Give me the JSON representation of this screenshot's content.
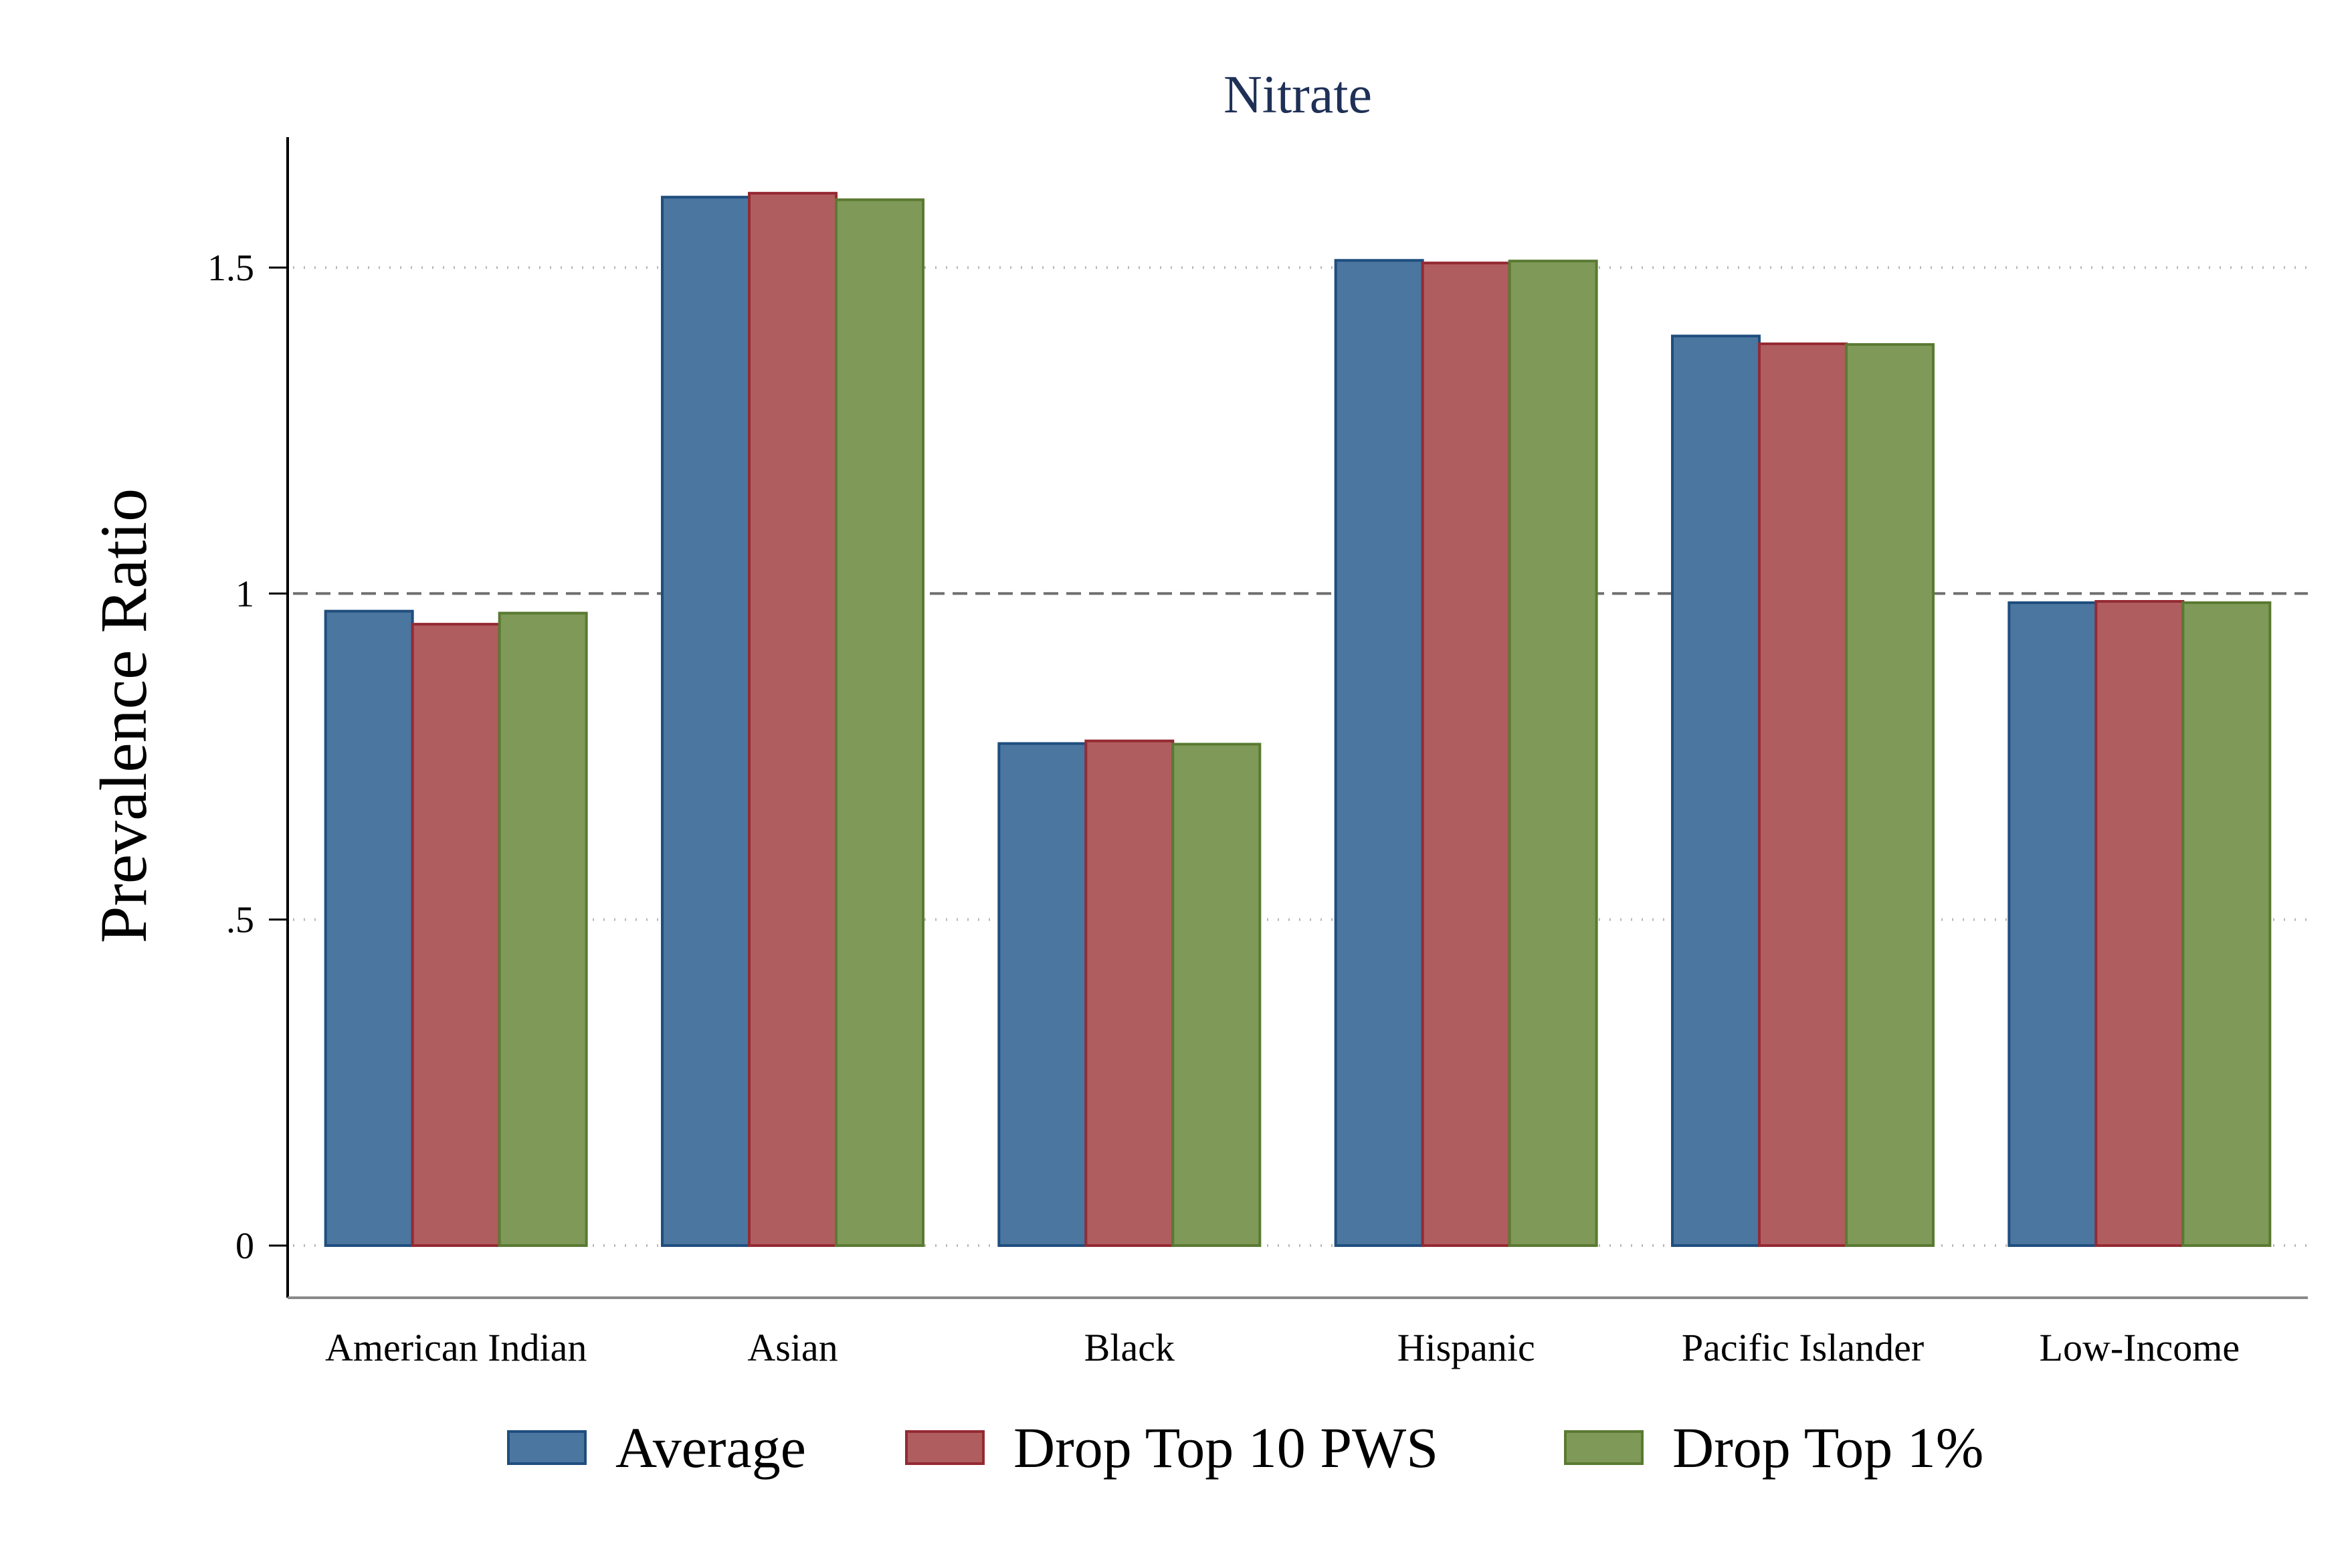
{
  "chart_data": {
    "type": "bar",
    "title": "Nitrate",
    "ylabel": "Prevalence Ratio",
    "xlabel": "",
    "categories": [
      "American Indian",
      "Asian",
      "Black",
      "Hispanic",
      "Pacific Islander",
      "Low-Income"
    ],
    "series": [
      {
        "name": "Average",
        "color": "#4a76a0",
        "stroke": "#1f4e7e",
        "values": [
          0.973,
          1.608,
          0.77,
          1.511,
          1.395,
          0.986
        ]
      },
      {
        "name": "Drop Top 10 PWS",
        "color": "#b05d5f",
        "stroke": "#942a32",
        "values": [
          0.953,
          1.614,
          0.774,
          1.507,
          1.383,
          0.988
        ]
      },
      {
        "name": "Drop Top 1%",
        "color": "#7f9a58",
        "stroke": "#5a7a32",
        "values": [
          0.97,
          1.604,
          0.769,
          1.51,
          1.382,
          0.986
        ]
      }
    ],
    "yticks": [
      {
        "value": 0,
        "label": "0"
      },
      {
        "value": 0.5,
        "label": ".5"
      },
      {
        "value": 1,
        "label": "1"
      },
      {
        "value": 1.5,
        "label": "1.5"
      }
    ],
    "ylim": [
      -0.08,
      1.7
    ],
    "reference_line": 1,
    "grid": true,
    "legend_position": "bottom"
  }
}
